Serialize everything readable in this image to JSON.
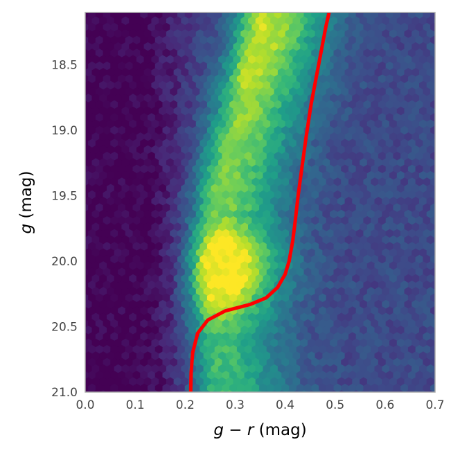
{
  "chart_data": {
    "type": "heatmap",
    "title": "",
    "xlabel": {
      "italic_left": "g",
      "op": " − ",
      "italic_right": "r",
      "unit": " (mag)"
    },
    "ylabel": {
      "italic": "g",
      "unit": " (mag)"
    },
    "xlim": [
      0.0,
      0.7
    ],
    "ylim": [
      18.1,
      21.0
    ],
    "y_inverted": true,
    "grid": false,
    "colormap": "viridis",
    "x_ticks": [
      0.0,
      0.1,
      0.2,
      0.3,
      0.4,
      0.5,
      0.6,
      0.7
    ],
    "x_tick_labels": [
      "0.0",
      "0.1",
      "0.2",
      "0.3",
      "0.4",
      "0.5",
      "0.6",
      "0.7"
    ],
    "y_ticks": [
      18.5,
      19.0,
      19.5,
      20.0,
      20.5,
      21.0
    ],
    "y_tick_labels": [
      "18.5",
      "19.0",
      "19.5",
      "20.0",
      "20.5",
      "21.0"
    ],
    "density_description": "hexbin density of stars; main sequence ridge near g-r≈0.26–0.30, densest at g≈19.8–20.3",
    "curve": {
      "color": "#ff0000",
      "x": [
        0.211,
        0.212,
        0.215,
        0.225,
        0.245,
        0.28,
        0.33,
        0.362,
        0.385,
        0.4,
        0.408,
        0.415,
        0.42,
        0.426,
        0.433,
        0.442,
        0.452,
        0.462,
        0.472,
        0.482,
        0.488
      ],
      "y": [
        21.0,
        20.85,
        20.7,
        20.55,
        20.45,
        20.38,
        20.33,
        20.28,
        20.2,
        20.1,
        20.0,
        19.85,
        19.7,
        19.5,
        19.3,
        19.05,
        18.8,
        18.6,
        18.4,
        18.2,
        18.1
      ]
    }
  }
}
